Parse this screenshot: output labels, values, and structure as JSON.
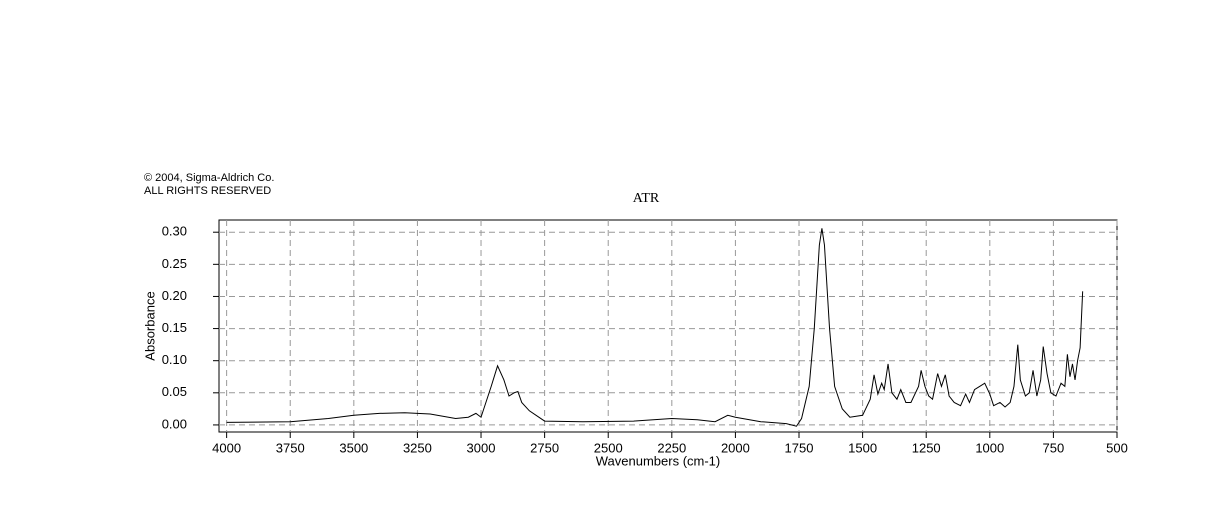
{
  "chart_data": {
    "type": "line",
    "title": "ATR",
    "annotations": [
      "© 2004, Sigma-Aldrich Co.",
      "ALL RIGHTS RESERVED"
    ],
    "xlabel": "Wavenumbers (cm-1)",
    "ylabel": "Absorbance",
    "xlim": [
      4030,
      500
    ],
    "ylim": [
      -0.011,
      0.319
    ],
    "xticks": [
      4000,
      3750,
      3500,
      3250,
      3000,
      2750,
      2500,
      2250,
      2000,
      1750,
      1500,
      1250,
      1000,
      750,
      500
    ],
    "yticks": [
      {
        "value": 0,
        "label": "0.00"
      },
      0.05,
      {
        "value": 0.1,
        "label": "0.10"
      },
      0.15,
      {
        "value": 0.2,
        "label": "0.20"
      },
      0.25,
      {
        "value": 0.3,
        "label": "0.30"
      }
    ],
    "grid": true,
    "color": "#000000",
    "x": [
      4000,
      3750,
      3600,
      3500,
      3400,
      3300,
      3200,
      3100,
      3050,
      3020,
      3000,
      2960,
      2935,
      2910,
      2890,
      2870,
      2855,
      2840,
      2810,
      2750,
      2600,
      2400,
      2250,
      2150,
      2080,
      2030,
      2000,
      1900,
      1800,
      1760,
      1740,
      1710,
      1690,
      1670,
      1660,
      1650,
      1630,
      1610,
      1580,
      1550,
      1500,
      1470,
      1455,
      1440,
      1425,
      1415,
      1400,
      1385,
      1365,
      1350,
      1330,
      1310,
      1280,
      1270,
      1255,
      1240,
      1225,
      1205,
      1190,
      1175,
      1160,
      1140,
      1115,
      1095,
      1080,
      1060,
      1040,
      1020,
      1000,
      985,
      960,
      940,
      920,
      905,
      890,
      880,
      860,
      845,
      830,
      815,
      800,
      790,
      775,
      760,
      740,
      720,
      705,
      695,
      685,
      675,
      665,
      655,
      645,
      635
    ],
    "values": [
      0.004,
      0.005,
      0.01,
      0.015,
      0.018,
      0.019,
      0.017,
      0.01,
      0.012,
      0.018,
      0.012,
      0.06,
      0.092,
      0.07,
      0.045,
      0.05,
      0.052,
      0.035,
      0.022,
      0.006,
      0.005,
      0.006,
      0.01,
      0.008,
      0.005,
      0.015,
      0.012,
      0.005,
      0.002,
      -0.002,
      0.01,
      0.06,
      0.15,
      0.28,
      0.306,
      0.28,
      0.15,
      0.06,
      0.025,
      0.012,
      0.015,
      0.04,
      0.078,
      0.048,
      0.065,
      0.055,
      0.095,
      0.05,
      0.04,
      0.055,
      0.035,
      0.035,
      0.06,
      0.085,
      0.06,
      0.045,
      0.04,
      0.08,
      0.06,
      0.078,
      0.045,
      0.035,
      0.03,
      0.048,
      0.035,
      0.055,
      0.06,
      0.065,
      0.048,
      0.03,
      0.035,
      0.028,
      0.035,
      0.06,
      0.125,
      0.07,
      0.045,
      0.05,
      0.085,
      0.045,
      0.07,
      0.122,
      0.08,
      0.05,
      0.045,
      0.065,
      0.06,
      0.11,
      0.075,
      0.095,
      0.07,
      0.1,
      0.12,
      0.208
    ]
  }
}
